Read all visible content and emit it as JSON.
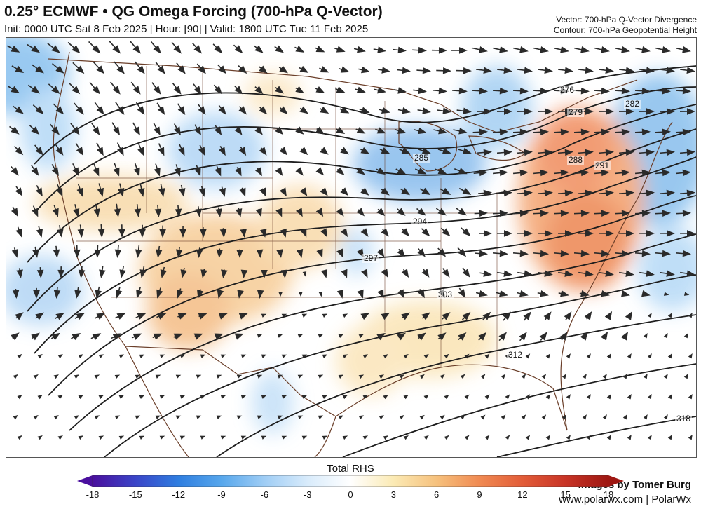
{
  "header": {
    "title": "0.25° ECMWF • QG Omega Forcing (700-hPa Q-Vector)",
    "subtitle": "Init: 0000 UTC Sat 8 Feb 2025 | Hour: [90] | Valid: 1800 UTC Tue 11 Feb 2025",
    "legend_line1": "Vector: 700-hPa Q-Vector Divergence",
    "legend_line2": "Contour: 700-hPa Geopotential Height"
  },
  "map": {
    "region": "CONUS",
    "contour_labels": [
      "276",
      "279",
      "282",
      "285",
      "288",
      "291",
      "294",
      "297",
      "303",
      "312",
      "318"
    ],
    "colors": {
      "contour": "#1e1e1e",
      "vector": "#2a2a2a",
      "state_lines": "#6b3f2a",
      "positive": "#f08a4b",
      "negative": "#5aa6e8"
    }
  },
  "credits": {
    "line1": "Images by Tomer Burg",
    "line2": "www.polarwx.com | PolarWx"
  },
  "colorbar": {
    "title": "Total RHS",
    "ticks": [
      "-18",
      "-15",
      "-12",
      "-9",
      "-6",
      "-3",
      "0",
      "3",
      "6",
      "9",
      "12",
      "15",
      "18"
    ],
    "min": -18,
    "max": 18,
    "stops": [
      "#4a0f9e",
      "#3a45c8",
      "#2f7ee0",
      "#57a7ec",
      "#9fcdf5",
      "#d8ebfb",
      "#ffffff",
      "#fbeab4",
      "#f6c17d",
      "#f08a52",
      "#e25c38",
      "#c83426",
      "#9e1712"
    ]
  }
}
